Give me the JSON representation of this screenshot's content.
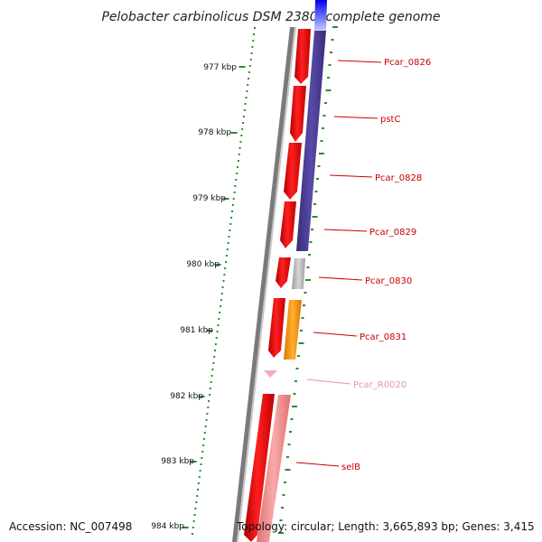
{
  "title": "Pelobacter carbinolicus DSM 2380, complete genome",
  "ruler": {
    "labels": [
      "977 kbp",
      "978 kbp",
      "979 kbp",
      "980 kbp",
      "981 kbp",
      "982 kbp",
      "983 kbp",
      "984 kbp"
    ],
    "color": "#2e8b2e"
  },
  "genes": [
    {
      "name": "Pcar_0826",
      "color": "#cc0000"
    },
    {
      "name": "pstC",
      "color": "#cc0000"
    },
    {
      "name": "Pcar_0828",
      "color": "#cc0000"
    },
    {
      "name": "Pcar_0829",
      "color": "#cc0000"
    },
    {
      "name": "Pcar_0830",
      "color": "#cc0000"
    },
    {
      "name": "Pcar_0831",
      "color": "#cc0000"
    },
    {
      "name": "Pcar_R0020",
      "color": "#e78fc0"
    },
    {
      "name": "selB",
      "color": "#cc0000"
    }
  ],
  "colors": {
    "forward_strand": "#ff0000",
    "blast_hit": "#4b3b8f",
    "rna": "#f4a7c9",
    "gray_feature": "#b8b8b8",
    "orange_feature": "#ff9900",
    "salmon_feature": "#f08a8a"
  },
  "footer": {
    "accession": "Accession: NC_007498",
    "topology": "Topology: circular; Length: 3,665,893 bp; Genes: 3,415"
  }
}
